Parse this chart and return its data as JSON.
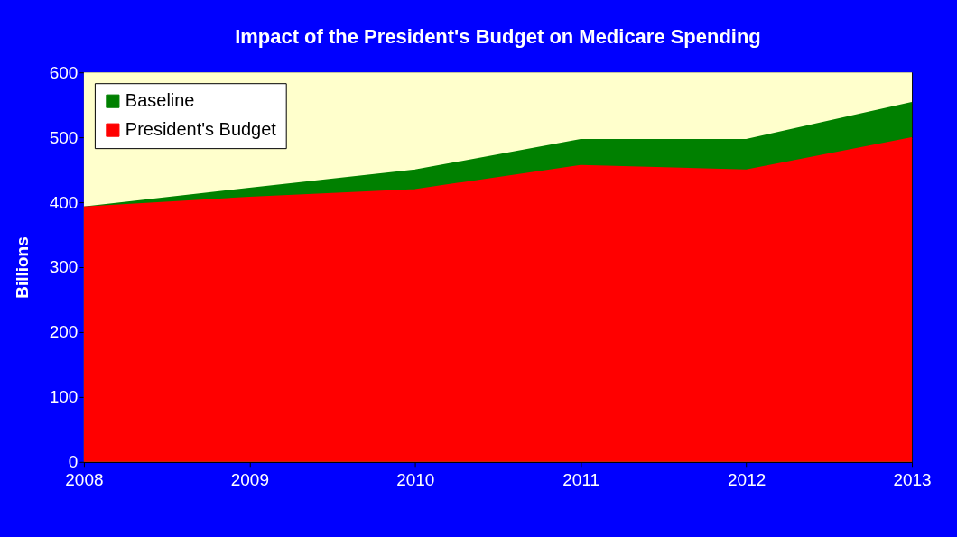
{
  "chart_data": {
    "type": "area",
    "title": "Impact of the President's Budget on Medicare Spending",
    "ylabel": "Billions",
    "x": [
      2008,
      2009,
      2010,
      2011,
      2012,
      2013
    ],
    "series": [
      {
        "name": "Baseline",
        "color": "#008000",
        "values": [
          392,
          421,
          449,
          496,
          496,
          553
        ]
      },
      {
        "name": "President's Budget",
        "color": "#ff0000",
        "values": [
          392,
          407,
          419,
          456,
          449,
          499
        ]
      }
    ],
    "xlim": [
      2008,
      2013
    ],
    "xticks": [
      2008,
      2009,
      2010,
      2011,
      2012,
      2013
    ],
    "ylim": [
      0,
      600
    ],
    "yticks": [
      0,
      100,
      200,
      300,
      400,
      500,
      600
    ],
    "bands": [
      {
        "axis": "y",
        "from": 0,
        "to": 600,
        "color": "#ffffcc"
      }
    ],
    "grid": false,
    "legend": "top left"
  }
}
